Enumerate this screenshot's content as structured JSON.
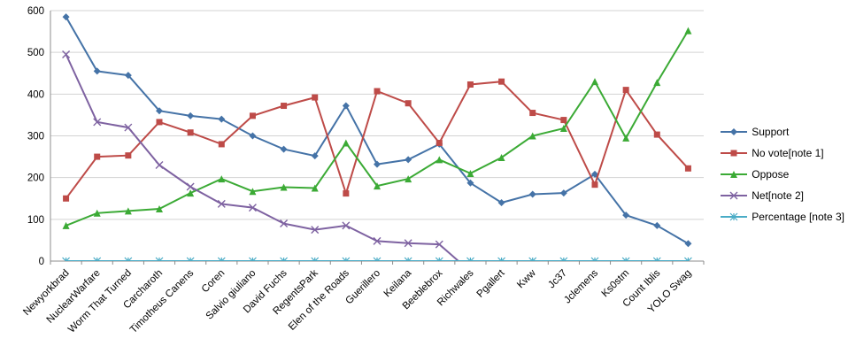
{
  "chart_data": {
    "type": "line",
    "title": "",
    "xlabel": "",
    "ylabel": "",
    "ylim": [
      0,
      600
    ],
    "yticks": [
      0,
      100,
      200,
      300,
      400,
      500,
      600
    ],
    "grid": true,
    "legend_position": "right",
    "categories": [
      "Newyorkbrad",
      "NuclearWarfare",
      "Worm That Turned",
      "Carcharoth",
      "Timotheus Canens",
      "Coren",
      "Salvio giuliano",
      "David Fuchs",
      "RegentsPark",
      "Elen of the Roads",
      "Guerillero",
      "Keilana",
      "Beeblebrox",
      "Richwales",
      "Pgallert",
      "Kww",
      "Jc37",
      "Jclemens",
      "Ks0stm",
      "Count Iblis",
      "YOLO Swag"
    ],
    "series": [
      {
        "name": "Support",
        "marker": "diamond",
        "color": "#4573A7",
        "values": [
          585,
          455,
          445,
          360,
          348,
          340,
          300,
          268,
          252,
          372,
          232,
          243,
          280,
          187,
          140,
          160,
          163,
          208,
          110,
          85,
          42
        ]
      },
      {
        "name": "No vote[note 1]",
        "marker": "square",
        "color": "#BE4B48",
        "values": [
          150,
          250,
          253,
          333,
          308,
          280,
          348,
          372,
          392,
          162,
          407,
          378,
          283,
          423,
          430,
          355,
          338,
          183,
          410,
          303,
          222
        ]
      },
      {
        "name": "Oppose",
        "marker": "triangle",
        "color": "#3BAA35",
        "values": [
          85,
          115,
          120,
          125,
          163,
          197,
          167,
          177,
          175,
          283,
          180,
          197,
          243,
          210,
          248,
          300,
          318,
          430,
          295,
          428,
          552
        ]
      },
      {
        "name": "Net[note 2]",
        "marker": "x",
        "color": "#7E62A1",
        "values": [
          495,
          333,
          320,
          230,
          178,
          137,
          128,
          90,
          75,
          85,
          48,
          43,
          40,
          -25,
          null,
          null,
          null,
          null,
          null,
          null,
          null
        ]
      },
      {
        "name": "Percentage [note 3]",
        "marker": "asterisk",
        "color": "#4AACC6",
        "values": [
          0,
          0,
          0,
          0,
          0,
          0,
          0,
          0,
          0,
          0,
          0,
          0,
          0,
          0,
          0,
          0,
          0,
          0,
          0,
          0,
          0
        ]
      }
    ],
    "colors": {
      "gridline": "#D3D3D3",
      "axis": "#8C8C8C",
      "text": "#000000",
      "background": "#FFFFFF"
    }
  }
}
